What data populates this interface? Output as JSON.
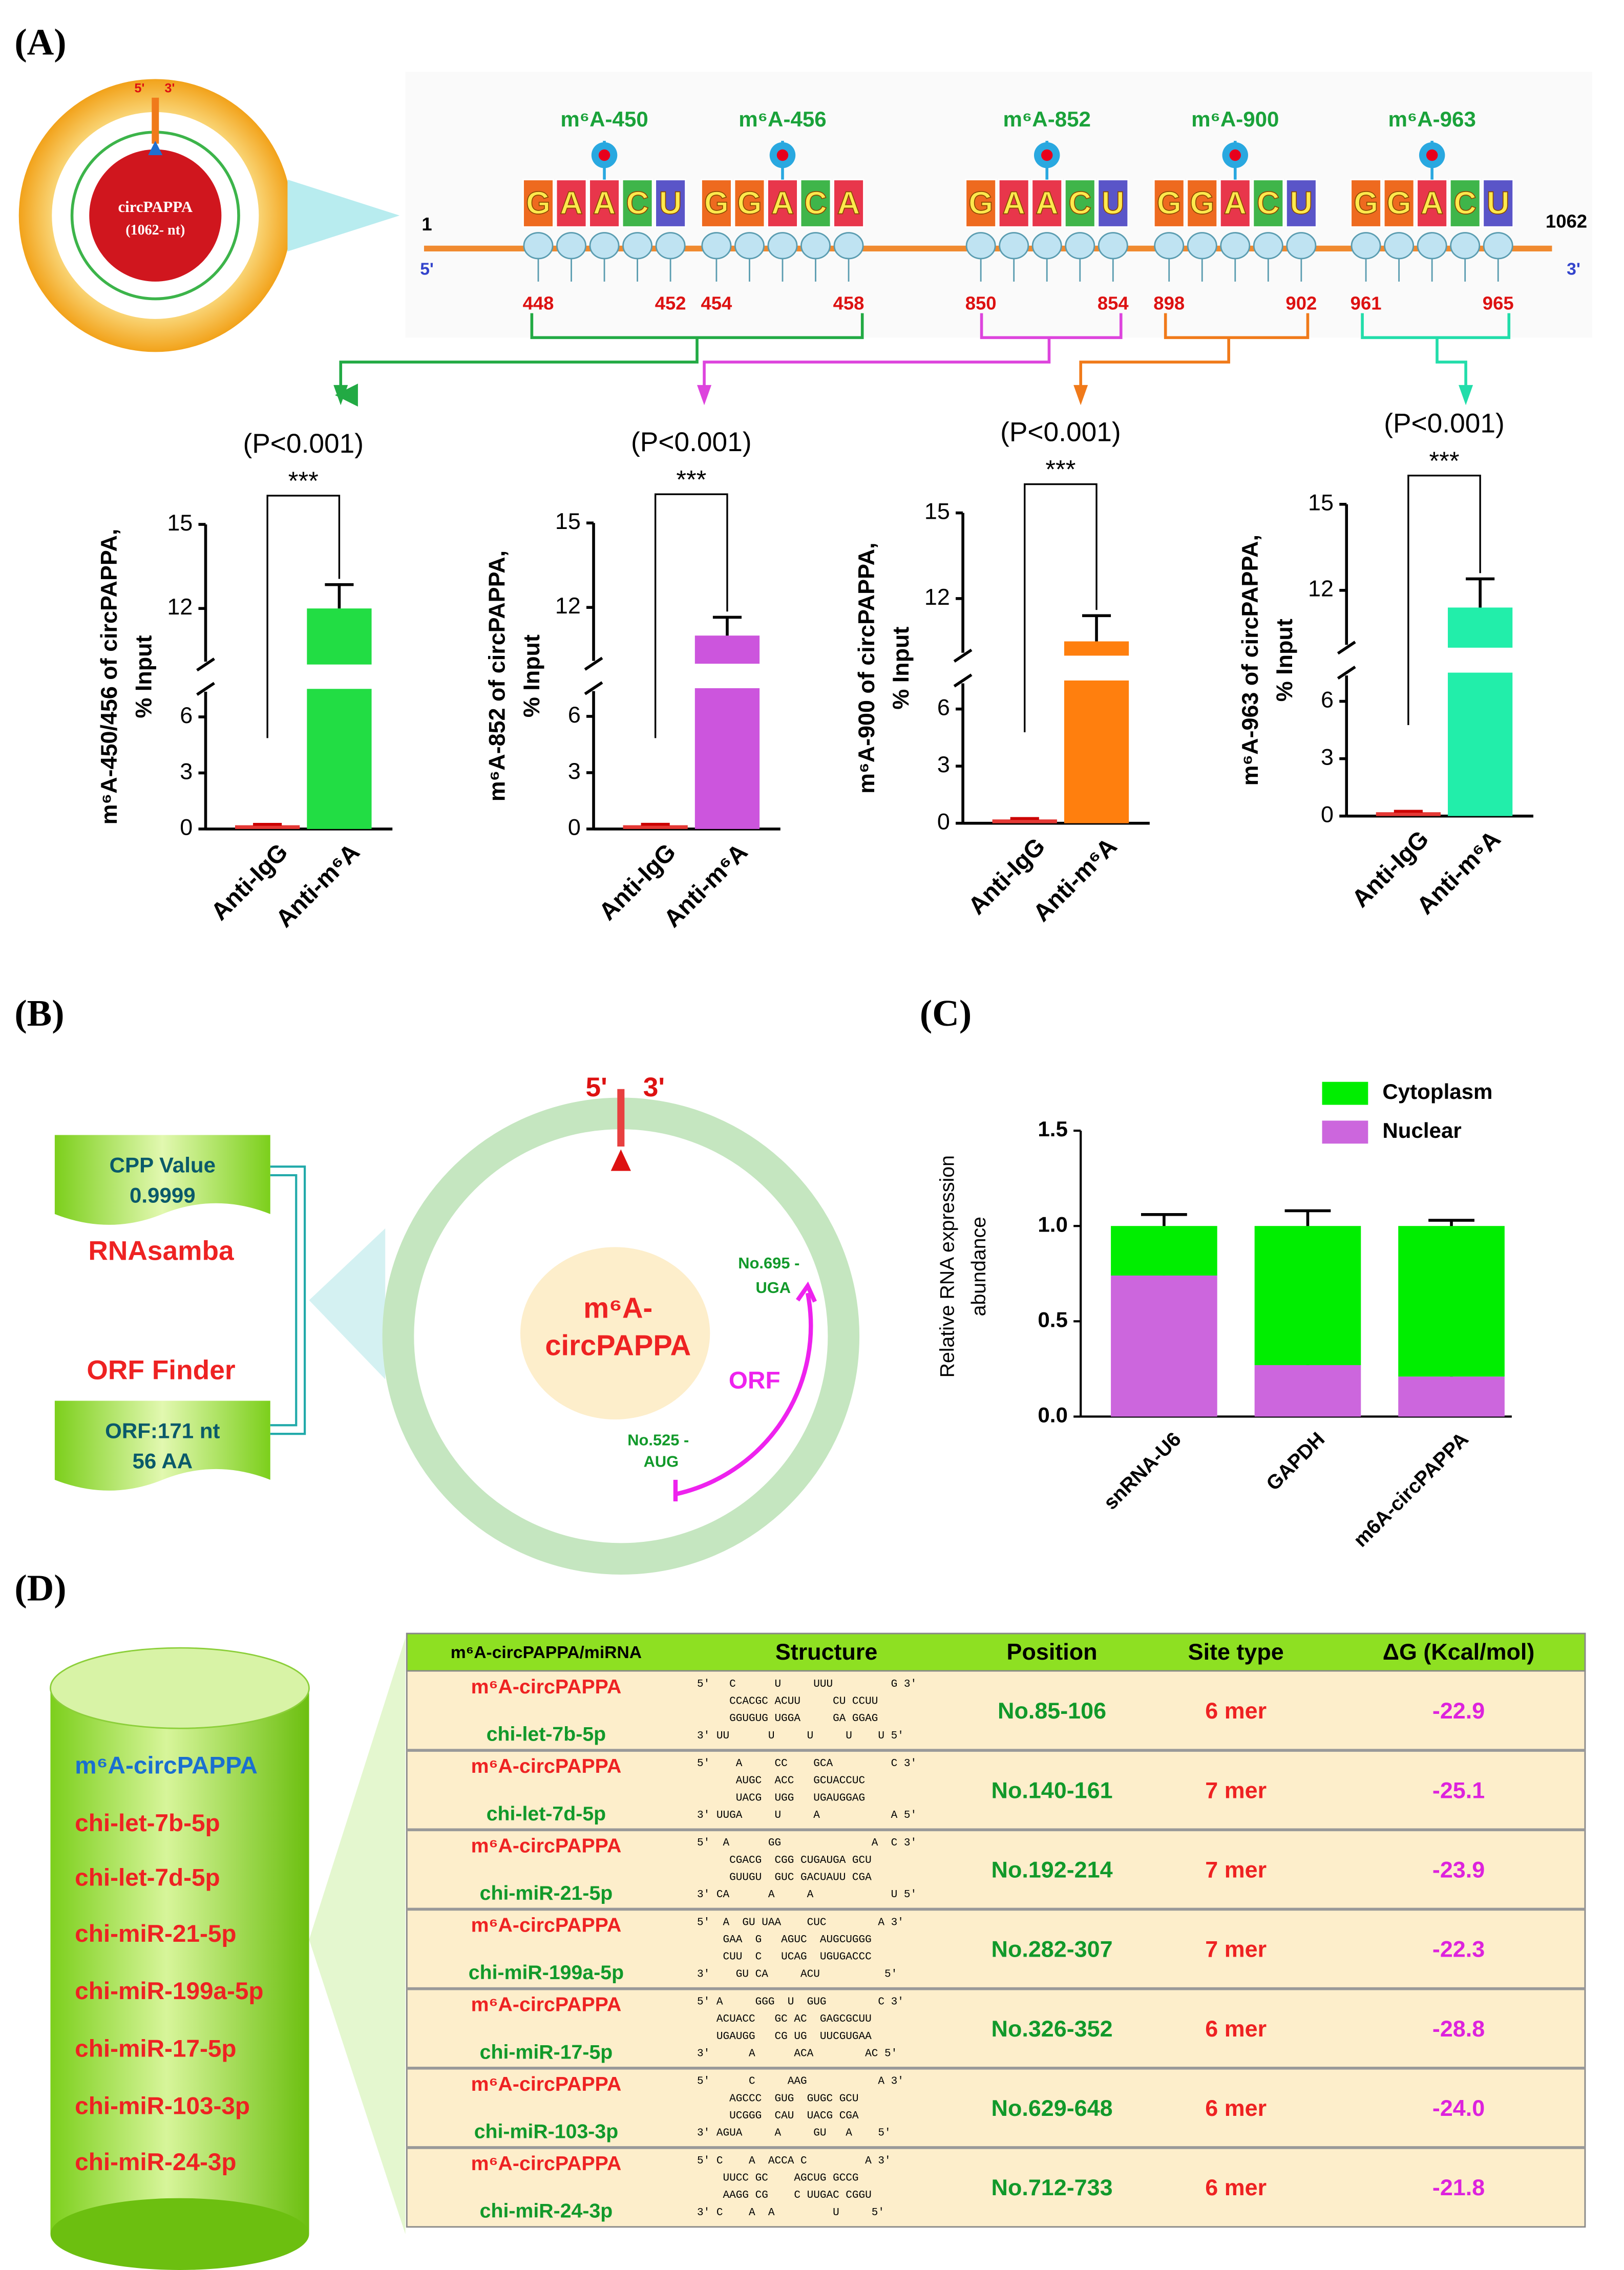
{
  "panel_labels": [
    "(A)",
    "(B)",
    "(C)",
    "(D)"
  ],
  "circ_a": {
    "five": "5'",
    "three": "3'",
    "name": "circPAPPA",
    "length": "(1062- nt)"
  },
  "sequence": {
    "start": "1",
    "end": "1062",
    "five": "5'",
    "three": "3'",
    "sites": [
      "m⁶A-450",
      "m⁶A-456",
      "m⁶A-852",
      "m⁶A-900",
      "m⁶A-963"
    ],
    "motifs": [
      {
        "letters": [
          "G",
          "A",
          "A",
          "C",
          "U"
        ],
        "positions": [
          448,
          452
        ]
      },
      {
        "letters": [
          "G",
          "G",
          "A",
          "C",
          "A"
        ],
        "positions": [
          454,
          458
        ]
      },
      {
        "letters": [
          "G",
          "A",
          "A",
          "C",
          "U"
        ],
        "positions": [
          850,
          854
        ]
      },
      {
        "letters": [
          "G",
          "G",
          "A",
          "C",
          "U"
        ],
        "positions": [
          898,
          902
        ]
      },
      {
        "letters": [
          "G",
          "G",
          "A",
          "C",
          "U"
        ],
        "positions": [
          961,
          965
        ]
      }
    ]
  },
  "chart_data": [
    {
      "type": "bar",
      "title": "(P<0.001)",
      "annotation": "***",
      "ylabel": [
        "m⁶A-450/456 of circPAPPA,",
        "% Input"
      ],
      "categories": [
        "Anti-IgG",
        "Anti-m⁶A"
      ],
      "values": [
        0.2,
        12.0
      ],
      "errors": [
        0.05,
        0.85
      ],
      "colors": [
        "#e53935",
        "#22dd44"
      ],
      "ylim": [
        0,
        15
      ],
      "ybreak": [
        7.5,
        10
      ],
      "yticks": [
        0,
        3,
        6,
        12,
        15
      ]
    },
    {
      "type": "bar",
      "title": "(P<0.001)",
      "annotation": "***",
      "ylabel": [
        "m⁶A-852 of circPAPPA,",
        "% Input"
      ],
      "categories": [
        "Anti-IgG",
        "Anti-m⁶A"
      ],
      "values": [
        0.2,
        11.0
      ],
      "errors": [
        0.05,
        0.65
      ],
      "colors": [
        "#e53935",
        "#cc55dd"
      ],
      "ylim": [
        0,
        15
      ],
      "ybreak": [
        7.5,
        10
      ],
      "yticks": [
        0,
        3,
        6,
        12,
        15
      ]
    },
    {
      "type": "bar",
      "title": "(P<0.001)",
      "annotation": "***",
      "ylabel": [
        "m⁶A-900 of circPAPPA,",
        "% Input"
      ],
      "categories": [
        "Anti-IgG",
        "Anti-m⁶A"
      ],
      "values": [
        0.2,
        10.5
      ],
      "errors": [
        0.05,
        0.9
      ],
      "colors": [
        "#e53935",
        "#ff7f0e"
      ],
      "ylim": [
        0,
        15
      ],
      "ybreak": [
        7.5,
        10
      ],
      "yticks": [
        0,
        3,
        6,
        12,
        15
      ]
    },
    {
      "type": "bar",
      "title": "(P<0.001)",
      "annotation": "***",
      "ylabel": [
        "m⁶A-963 of circPAPPA,",
        "% Input"
      ],
      "categories": [
        "Anti-IgG",
        "Anti-m⁶A"
      ],
      "values": [
        0.2,
        11.4
      ],
      "errors": [
        0.05,
        1.0
      ],
      "colors": [
        "#e53935",
        "#22eeaa"
      ],
      "ylim": [
        0,
        15
      ],
      "ybreak": [
        7.5,
        10
      ],
      "yticks": [
        0,
        3,
        6,
        12,
        15
      ]
    },
    {
      "type": "stacked_bar",
      "ylabel": [
        "Relative RNA expression",
        "abundance"
      ],
      "categories": [
        "snRNA-U6",
        "GAPDH",
        "m6A-circPAPPA"
      ],
      "series": [
        {
          "name": "Nuclear",
          "color": "#cc66dd",
          "values": [
            0.74,
            0.27,
            0.21
          ],
          "errors": [
            0.04,
            0.04,
            0.06
          ]
        },
        {
          "name": "Cytoplasm",
          "color": "#00ee00",
          "values": [
            0.26,
            0.73,
            0.79
          ],
          "errors": [
            0.06,
            0.08,
            0.03
          ]
        }
      ],
      "ylim": [
        0,
        1.5
      ],
      "yticks": [
        {
          "value": 0,
          "label": "0.0"
        },
        0.5,
        {
          "value": 1,
          "label": "1.0"
        },
        1.5
      ],
      "legend": "top-right"
    }
  ],
  "orf_panel": {
    "cpp_label": "CPP Value",
    "cpp_value": "0.9999",
    "tool1": "RNAsamba",
    "tool2": "ORF Finder",
    "orf_len": "ORF:171 nt",
    "aa": "56 AA",
    "five": "5'",
    "three": "3'",
    "center": [
      "m⁶A-",
      "circPAPPA"
    ],
    "stop": [
      "No.695 -",
      "UGA"
    ],
    "orf": "ORF",
    "start": [
      "No.525 -",
      "AUG"
    ]
  },
  "cylinder": [
    "m⁶A-circPAPPA",
    "chi-let-7b-5p",
    "chi-let-7d-5p",
    "chi-miR-21-5p",
    "chi-miR-199a-5p",
    "chi-miR-17-5p",
    "chi-miR-103-3p",
    "chi-miR-24-3p"
  ],
  "table": {
    "headers": [
      "m⁶A-circPAPPA/miRNA",
      "Structure",
      "Position",
      "Site type",
      "ΔG (Kcal/mol)"
    ],
    "rows": [
      {
        "circ": "m⁶A-circPAPPA",
        "mirna": "chi-let-7b-5p",
        "structure": [
          "5'   C      U     UUU         G 3'",
          "     CCACGC ACUU     CU CCUU",
          "     GGUGUG UGGA     GA GGAG",
          "3' UU      U     U     U    U 5'"
        ],
        "position": "No.85-106",
        "site_type": "6 mer",
        "dg": "-22.9"
      },
      {
        "circ": "m⁶A-circPAPPA",
        "mirna": "chi-let-7d-5p",
        "structure": [
          "5'    A     CC    GCA         C 3'",
          "      AUGC  ACC   GCUACCUC",
          "      UACG  UGG   UGAUGGAG",
          "3' UUGA     U     A           A 5'"
        ],
        "position": "No.140-161",
        "site_type": "7 mer",
        "dg": "-25.1"
      },
      {
        "circ": "m⁶A-circPAPPA",
        "mirna": "chi-miR-21-5p",
        "structure": [
          "5'  A      GG              A  C 3'",
          "     CGACG  CGG CUGAUGA GCU",
          "     GUUGU  GUC GACUAUU CGA",
          "3' CA      A     A            U 5'"
        ],
        "position": "No.192-214",
        "site_type": "7 mer",
        "dg": "-23.9"
      },
      {
        "circ": "m⁶A-circPAPPA",
        "mirna": "chi-miR-199a-5p",
        "structure": [
          "5'  A  GU UAA    CUC        A 3'",
          "    GAA  G   AGUC  AUGCUGGG",
          "    CUU  C   UCAG  UGUGACCC",
          "3'    GU CA     ACU          5'"
        ],
        "position": "No.282-307",
        "site_type": "7 mer",
        "dg": "-22.3"
      },
      {
        "circ": "m⁶A-circPAPPA",
        "mirna": "chi-miR-17-5p",
        "structure": [
          "5' A     GGG  U  GUG        C 3'",
          "   ACUACC   GC AC  GAGCGCUU",
          "   UGAUGG   CG UG  UUCGUGAA",
          "3'      A      ACA        AC 5'"
        ],
        "position": "No.326-352",
        "site_type": "6 mer",
        "dg": "-28.8"
      },
      {
        "circ": "m⁶A-circPAPPA",
        "mirna": "chi-miR-103-3p",
        "structure": [
          "5'      C     AAG           A 3'",
          "     AGCCC  GUG  GUGC GCU",
          "     UCGGG  CAU  UACG CGA",
          "3' AGUA     A     GU   A    5'"
        ],
        "position": "No.629-648",
        "site_type": "6 mer",
        "dg": "-24.0"
      },
      {
        "circ": "m⁶A-circPAPPA",
        "mirna": "chi-miR-24-3p",
        "structure": [
          "5' C    A  ACCA C         A 3'",
          "    UUCC GC    AGCUG GCCG",
          "    AAGG CG    C UUGAC CGGU",
          "3' C    A  A         U     5'"
        ],
        "position": "No.712-733",
        "site_type": "6 mer",
        "dg": "-21.8"
      }
    ]
  }
}
